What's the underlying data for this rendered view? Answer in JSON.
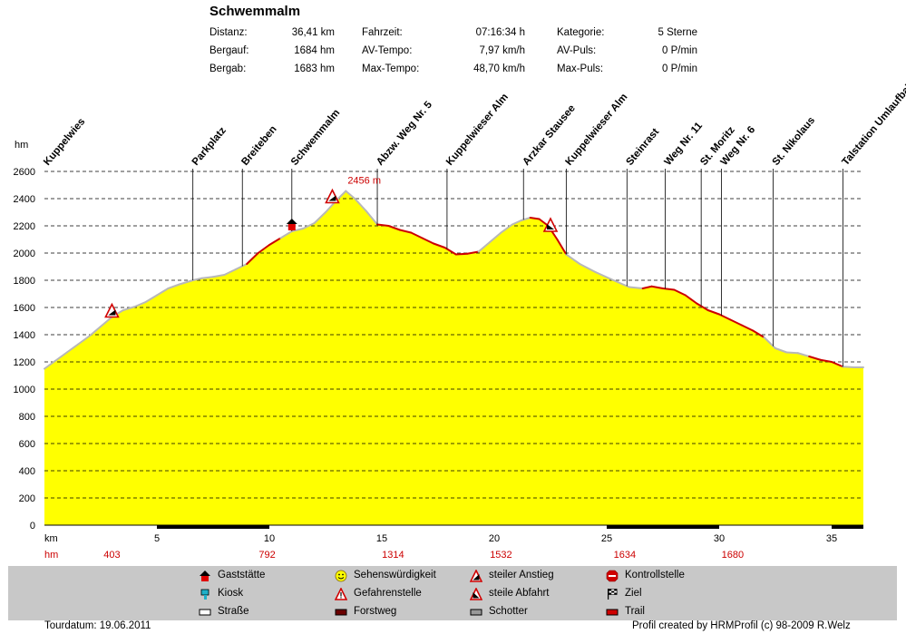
{
  "header": {
    "title": "Schwemmalm",
    "stats": [
      {
        "label": "Distanz:",
        "value": "36,41 km"
      },
      {
        "label": "Bergauf:",
        "value": "1684 hm"
      },
      {
        "label": "Bergab:",
        "value": "1683 hm"
      },
      {
        "label": "Fahrzeit:",
        "value": "07:16:34 h"
      },
      {
        "label": "AV-Tempo:",
        "value": "7,97 km/h"
      },
      {
        "label": "Max-Tempo:",
        "value": "48,70 km/h"
      },
      {
        "label": "Kategorie:",
        "value": "5 Sterne"
      },
      {
        "label": "AV-Puls:",
        "value": "0 P/min"
      },
      {
        "label": "Max-Puls:",
        "value": "0 P/min"
      }
    ]
  },
  "chart_data": {
    "type": "area",
    "ylabel": "hm",
    "xlabel": "km",
    "xlim": [
      0,
      36.41
    ],
    "ylim": [
      0,
      2600
    ],
    "yticks": [
      0,
      200,
      400,
      600,
      800,
      1000,
      1200,
      1400,
      1600,
      1800,
      2000,
      2200,
      2400,
      2600
    ],
    "xticks": [
      5,
      10,
      15,
      20,
      25,
      30,
      35
    ],
    "grid": true,
    "colors": {
      "fill": "#ffff00",
      "line_gravel": "#b8b8b8",
      "line_trail": "#cc0000",
      "grid": "#000000"
    },
    "peak_label": "2456 m",
    "profile": [
      [
        0,
        1150
      ],
      [
        0.5,
        1210
      ],
      [
        1.0,
        1270
      ],
      [
        1.5,
        1330
      ],
      [
        2.0,
        1390
      ],
      [
        2.5,
        1460
      ],
      [
        3.0,
        1530
      ],
      [
        3.5,
        1580
      ],
      [
        4.0,
        1605
      ],
      [
        4.5,
        1640
      ],
      [
        5.0,
        1690
      ],
      [
        5.5,
        1740
      ],
      [
        6.0,
        1770
      ],
      [
        6.6,
        1800
      ],
      [
        7.0,
        1815
      ],
      [
        7.5,
        1825
      ],
      [
        8.0,
        1840
      ],
      [
        8.5,
        1880
      ],
      [
        9.0,
        1920
      ],
      [
        9.5,
        2000
      ],
      [
        10.0,
        2060
      ],
      [
        10.5,
        2110
      ],
      [
        11.0,
        2160
      ],
      [
        11.5,
        2180
      ],
      [
        12.0,
        2220
      ],
      [
        12.5,
        2300
      ],
      [
        13.0,
        2390
      ],
      [
        13.4,
        2456
      ],
      [
        13.8,
        2400
      ],
      [
        14.3,
        2310
      ],
      [
        14.8,
        2210
      ],
      [
        15.3,
        2200
      ],
      [
        15.8,
        2170
      ],
      [
        16.3,
        2150
      ],
      [
        16.8,
        2110
      ],
      [
        17.3,
        2070
      ],
      [
        17.8,
        2040
      ],
      [
        18.3,
        1990
      ],
      [
        18.8,
        1995
      ],
      [
        19.3,
        2010
      ],
      [
        19.8,
        2080
      ],
      [
        20.3,
        2150
      ],
      [
        20.8,
        2210
      ],
      [
        21.2,
        2240
      ],
      [
        21.6,
        2260
      ],
      [
        22.0,
        2250
      ],
      [
        22.4,
        2200
      ],
      [
        22.8,
        2100
      ],
      [
        23.2,
        1990
      ],
      [
        23.8,
        1920
      ],
      [
        24.5,
        1860
      ],
      [
        25.3,
        1800
      ],
      [
        26.0,
        1750
      ],
      [
        26.6,
        1740
      ],
      [
        27.0,
        1755
      ],
      [
        27.5,
        1740
      ],
      [
        28.0,
        1730
      ],
      [
        28.5,
        1690
      ],
      [
        29.0,
        1630
      ],
      [
        29.5,
        1580
      ],
      [
        30.0,
        1550
      ],
      [
        30.5,
        1510
      ],
      [
        31.0,
        1470
      ],
      [
        31.5,
        1430
      ],
      [
        32.0,
        1380
      ],
      [
        32.5,
        1300
      ],
      [
        33.0,
        1270
      ],
      [
        33.5,
        1265
      ],
      [
        34.0,
        1240
      ],
      [
        34.5,
        1215
      ],
      [
        35.0,
        1200
      ],
      [
        35.5,
        1165
      ],
      [
        36.0,
        1160
      ],
      [
        36.41,
        1160
      ]
    ],
    "waypoints": [
      {
        "name": "Kuppelwies",
        "km": 0
      },
      {
        "name": "Parkplatz",
        "km": 6.6
      },
      {
        "name": "Breiteben",
        "km": 8.8
      },
      {
        "name": "Schwemmalm",
        "km": 11.0
      },
      {
        "name": "Abzw. Weg Nr. 5",
        "km": 14.8
      },
      {
        "name": "Kuppelwieser Alm",
        "km": 17.9
      },
      {
        "name": "Arzkar Stausee",
        "km": 21.3
      },
      {
        "name": "Kuppelwieser Alm",
        "km": 23.2
      },
      {
        "name": "Steinrast",
        "km": 25.9
      },
      {
        "name": "Weg Nr. 11",
        "km": 27.6
      },
      {
        "name": "St. Moritz",
        "km": 29.2
      },
      {
        "name": "Weg Nr. 6",
        "km": 30.1
      },
      {
        "name": "St. Nikolaus",
        "km": 32.4
      },
      {
        "name": "Talstation Umlaufbahn",
        "km": 35.5
      }
    ],
    "markers": [
      {
        "type": "steiler Anstieg",
        "km": 3.0,
        "elev": 1530
      },
      {
        "type": "Gasstätte",
        "km": 11.0,
        "elev": 2160
      },
      {
        "type": "steiler Anstieg",
        "km": 12.8,
        "elev": 2370
      },
      {
        "type": "steile Abfahrt",
        "km": 22.5,
        "elev": 2160
      }
    ],
    "bottom_row": {
      "label": "hm",
      "values": [
        {
          "km": 3,
          "value": "403"
        },
        {
          "km": 9.9,
          "value": "792"
        },
        {
          "km": 15.5,
          "value": "1314"
        },
        {
          "km": 20.3,
          "value": "1532"
        },
        {
          "km": 25.8,
          "value": "1634"
        },
        {
          "km": 30.6,
          "value": "1680"
        }
      ]
    },
    "surface_bar": [
      {
        "from": 0,
        "to": 5,
        "surface": "Straße"
      },
      {
        "from": 5,
        "to": 10,
        "surface": "Forstweg"
      },
      {
        "from": 10,
        "to": 25,
        "surface": "Straße"
      },
      {
        "from": 25,
        "to": 30,
        "surface": "Forstweg"
      },
      {
        "from": 30,
        "to": 35,
        "surface": "Straße"
      },
      {
        "from": 35,
        "to": 36.41,
        "surface": "Forstweg"
      }
    ]
  },
  "legend": [
    {
      "label": "Gaststätte",
      "icon": "house-icon"
    },
    {
      "label": "Kiosk",
      "icon": "kiosk-icon"
    },
    {
      "label": "Straße",
      "icon": "road-icon"
    },
    {
      "label": "Sehenswürdigkeit",
      "icon": "smiley-icon"
    },
    {
      "label": "Gefahrenstelle",
      "icon": "warning-icon"
    },
    {
      "label": "Forstweg",
      "icon": "forest-road-icon"
    },
    {
      "label": "steiler Anstieg",
      "icon": "steep-up-icon"
    },
    {
      "label": "steile Abfahrt",
      "icon": "steep-down-icon"
    },
    {
      "label": "Schotter",
      "icon": "gravel-icon"
    },
    {
      "label": "Kontrollstelle",
      "icon": "stop-icon"
    },
    {
      "label": "Ziel",
      "icon": "finish-flag-icon"
    },
    {
      "label": "Trail",
      "icon": "trail-icon"
    }
  ],
  "footer": {
    "date": "Tourdatum: 19.06.2011",
    "credit": "Profil created by HRMProfil (c) 98-2009 R.Welz"
  }
}
